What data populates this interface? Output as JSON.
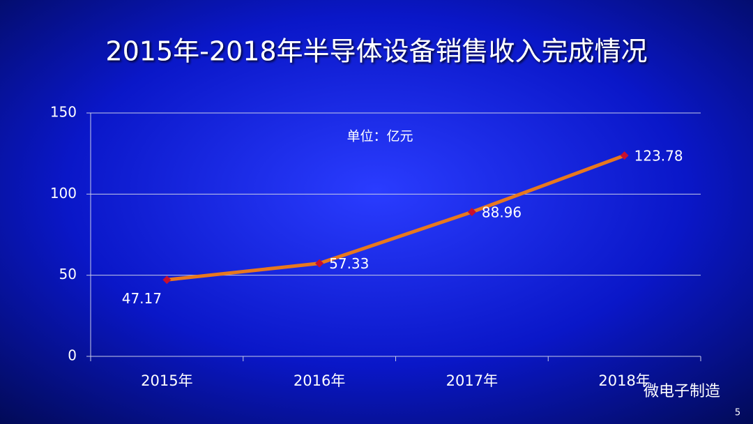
{
  "chart_data": {
    "type": "line",
    "title": "2015年-2018年半导体设备销售收入完成情况",
    "annotation": "单位：亿元",
    "categories": [
      "2015年",
      "2016年",
      "2017年",
      "2018年"
    ],
    "series": [
      {
        "values": [
          47.17,
          57.33,
          88.96,
          123.78
        ],
        "color": "#e8781e",
        "marker_color": "#c8102e"
      }
    ],
    "ylim": [
      0,
      150
    ],
    "yticks": [
      0,
      50,
      100,
      150
    ],
    "grid": true
  },
  "watermark": "微电子制造",
  "page_number": "5"
}
